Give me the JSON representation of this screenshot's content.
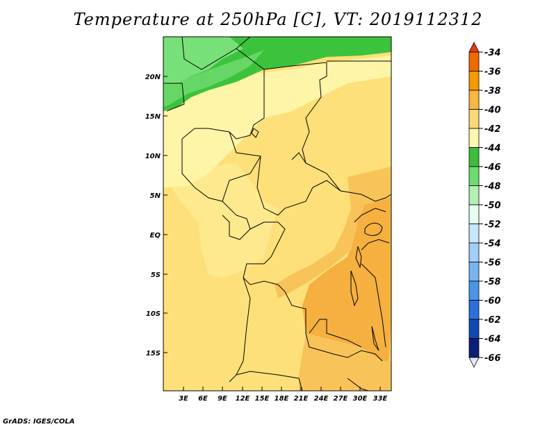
{
  "title": "Temperature at 250hPa [C], VT: 2019112312",
  "footer": "GrADS: IGES/COLA",
  "map": {
    "lat_labels": [
      "20N",
      "15N",
      "10N",
      "5N",
      "EQ",
      "5S",
      "10S",
      "15S"
    ],
    "lon_labels": [
      "3E",
      "6E",
      "9E",
      "12E",
      "15E",
      "18E",
      "21E",
      "24E",
      "27E",
      "30E",
      "33E"
    ]
  },
  "colorbar": {
    "labels": [
      "-34",
      "-36",
      "-38",
      "-40",
      "-42",
      "-44",
      "-46",
      "-48",
      "-50",
      "-52",
      "-54",
      "-56",
      "-58",
      "-60",
      "-62",
      "-64",
      "-66"
    ],
    "colors": [
      "#e63c10",
      "#f06a00",
      "#f59a00",
      "#f8b840",
      "#fcd878",
      "#fff8b0",
      "#3cbe3c",
      "#6edc6e",
      "#b4f0b4",
      "#e6fff0",
      "#c8e6ff",
      "#a0d0f8",
      "#78b4f0",
      "#4a96e6",
      "#2870dc",
      "#0f4ab4",
      "#0a1e78",
      "#e6e6fa"
    ]
  },
  "colors": {
    "yellow_light": "#fff5a8",
    "yellow": "#fde07a",
    "orange_light": "#f8c45a",
    "orange": "#f5b040",
    "green": "#3cc23c",
    "green_light": "#78e078"
  }
}
